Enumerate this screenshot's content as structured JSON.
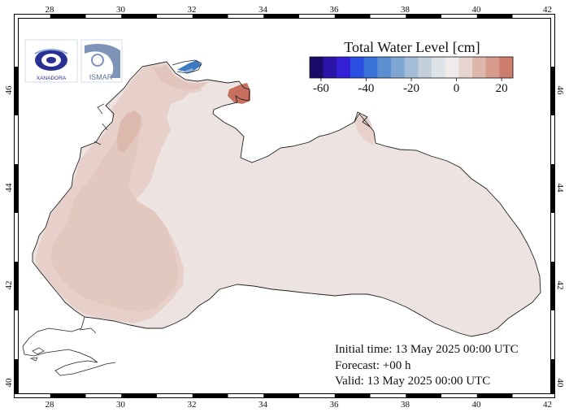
{
  "map": {
    "lon_ticks": [
      "28",
      "30",
      "32",
      "34",
      "36",
      "38",
      "40",
      "42"
    ],
    "lat_ticks": [
      "40",
      "42",
      "44",
      "46"
    ],
    "land_color": "#ffffff",
    "sea_base_color": "#ede3e0",
    "sea_warm_color": "#e3c8c0",
    "sea_warmer_color": "#d8aea3",
    "anomaly_hot_color": "#c86f5f",
    "anomaly_cold_color": "#3f79c4"
  },
  "legend": {
    "title": "Total Water Level [cm]",
    "tick_labels": [
      "-60",
      "-40",
      "-20",
      "0",
      "20"
    ],
    "colors": [
      "#1a0a68",
      "#2a14a8",
      "#3520d8",
      "#2b4fe0",
      "#3a74d8",
      "#5b8fd2",
      "#7fa6d3",
      "#a3bcd8",
      "#c3d0dc",
      "#dde3e8",
      "#efebea",
      "#e8d4ce",
      "#deb7ac",
      "#d69b8c",
      "#cc7d6d"
    ]
  },
  "logos": {
    "left_logo_text": "XANADORA",
    "right_logo_text": "ISMAR"
  },
  "info": {
    "initial_time": "Initial time: 13 May 2025 00:00 UTC",
    "forecast": "Forecast: +00 h",
    "valid": "Valid: 13 May 2025 00:00 UTC"
  }
}
